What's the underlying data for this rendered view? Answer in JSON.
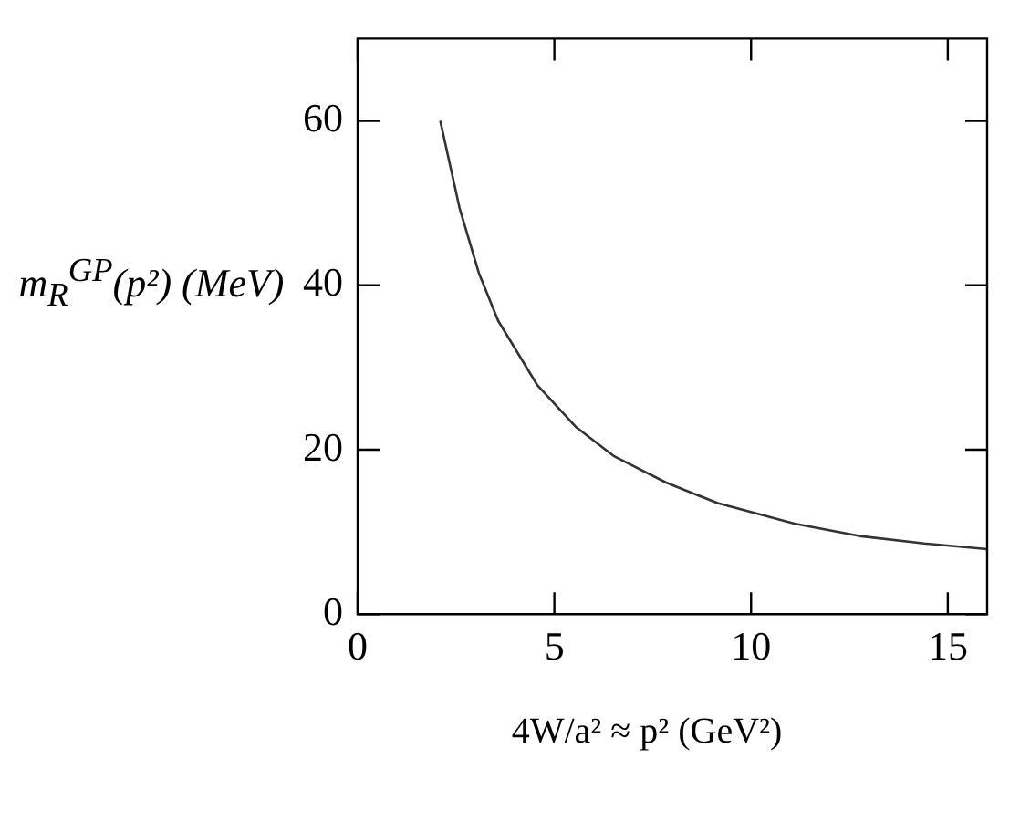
{
  "chart_data": {
    "type": "line",
    "xlabel": "4W/a² ≈ p² (GeV²)",
    "ylabel": "m$_{R}$$^{GP}$(p²) (MeV)",
    "xlim": [
      0,
      16
    ],
    "xticks": [
      0,
      5,
      10,
      15
    ],
    "ylim": [
      0,
      70
    ],
    "yticks": [
      0,
      20,
      40,
      60
    ],
    "grid": false,
    "legend": false,
    "marker": "none",
    "line_style": "solid",
    "series": [
      {
        "color": "#333333",
        "x": [
          2.1,
          2.59,
          3.08,
          3.57,
          4.56,
          5.54,
          6.52,
          7.84,
          9.15,
          11.1,
          12.75,
          14.4,
          16.0
        ],
        "values": [
          60,
          49.4,
          41.5,
          35.7,
          27.9,
          22.8,
          19.2,
          16.0,
          13.5,
          11.0,
          9.5,
          8.6,
          7.9
        ]
      }
    ]
  }
}
